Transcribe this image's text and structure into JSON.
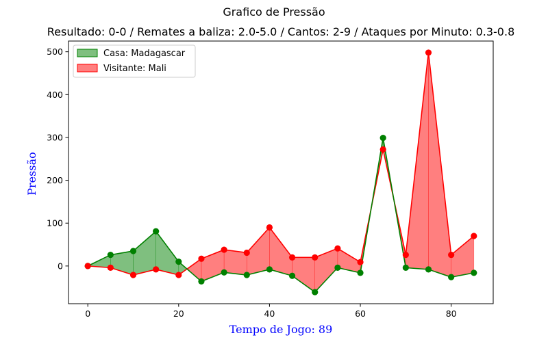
{
  "chart_data": {
    "type": "area",
    "title": "Grafico de Pressão",
    "subtitle": "Resultado: 0-0 / Remates a baliza: 2.0-5.0 / Cantos: 2-9 / Ataques por Minuto: 0.3-0.8",
    "xlabel": "Tempo de Jogo: 89",
    "ylabel": "Pressão",
    "xlim": [
      -4.25,
      89.25
    ],
    "ylim": [
      -88,
      525
    ],
    "xticks": [
      0,
      20,
      40,
      60,
      80
    ],
    "yticks": [
      0,
      100,
      200,
      300,
      400,
      500
    ],
    "grid": false,
    "legend_position": "top-left",
    "x": [
      0,
      5,
      10,
      15,
      20,
      25,
      30,
      35,
      40,
      45,
      50,
      55,
      60,
      65,
      70,
      75,
      80,
      85
    ],
    "series": [
      {
        "name": "Casa: Madagascar",
        "line_color": "#008000",
        "fill_color": "#008000",
        "values": [
          0,
          26,
          35,
          81,
          10,
          -36,
          -15,
          -21,
          -8,
          -23,
          -61,
          -4,
          -16,
          299,
          -4,
          -8,
          -26,
          -16
        ]
      },
      {
        "name": "Visitante: Mali",
        "line_color": "#ff0000",
        "fill_color": "#ff0000",
        "values": [
          0,
          -4,
          -21,
          -8,
          -21,
          17,
          38,
          31,
          90,
          20,
          20,
          41,
          9,
          272,
          26,
          498,
          26,
          70
        ]
      }
    ]
  }
}
